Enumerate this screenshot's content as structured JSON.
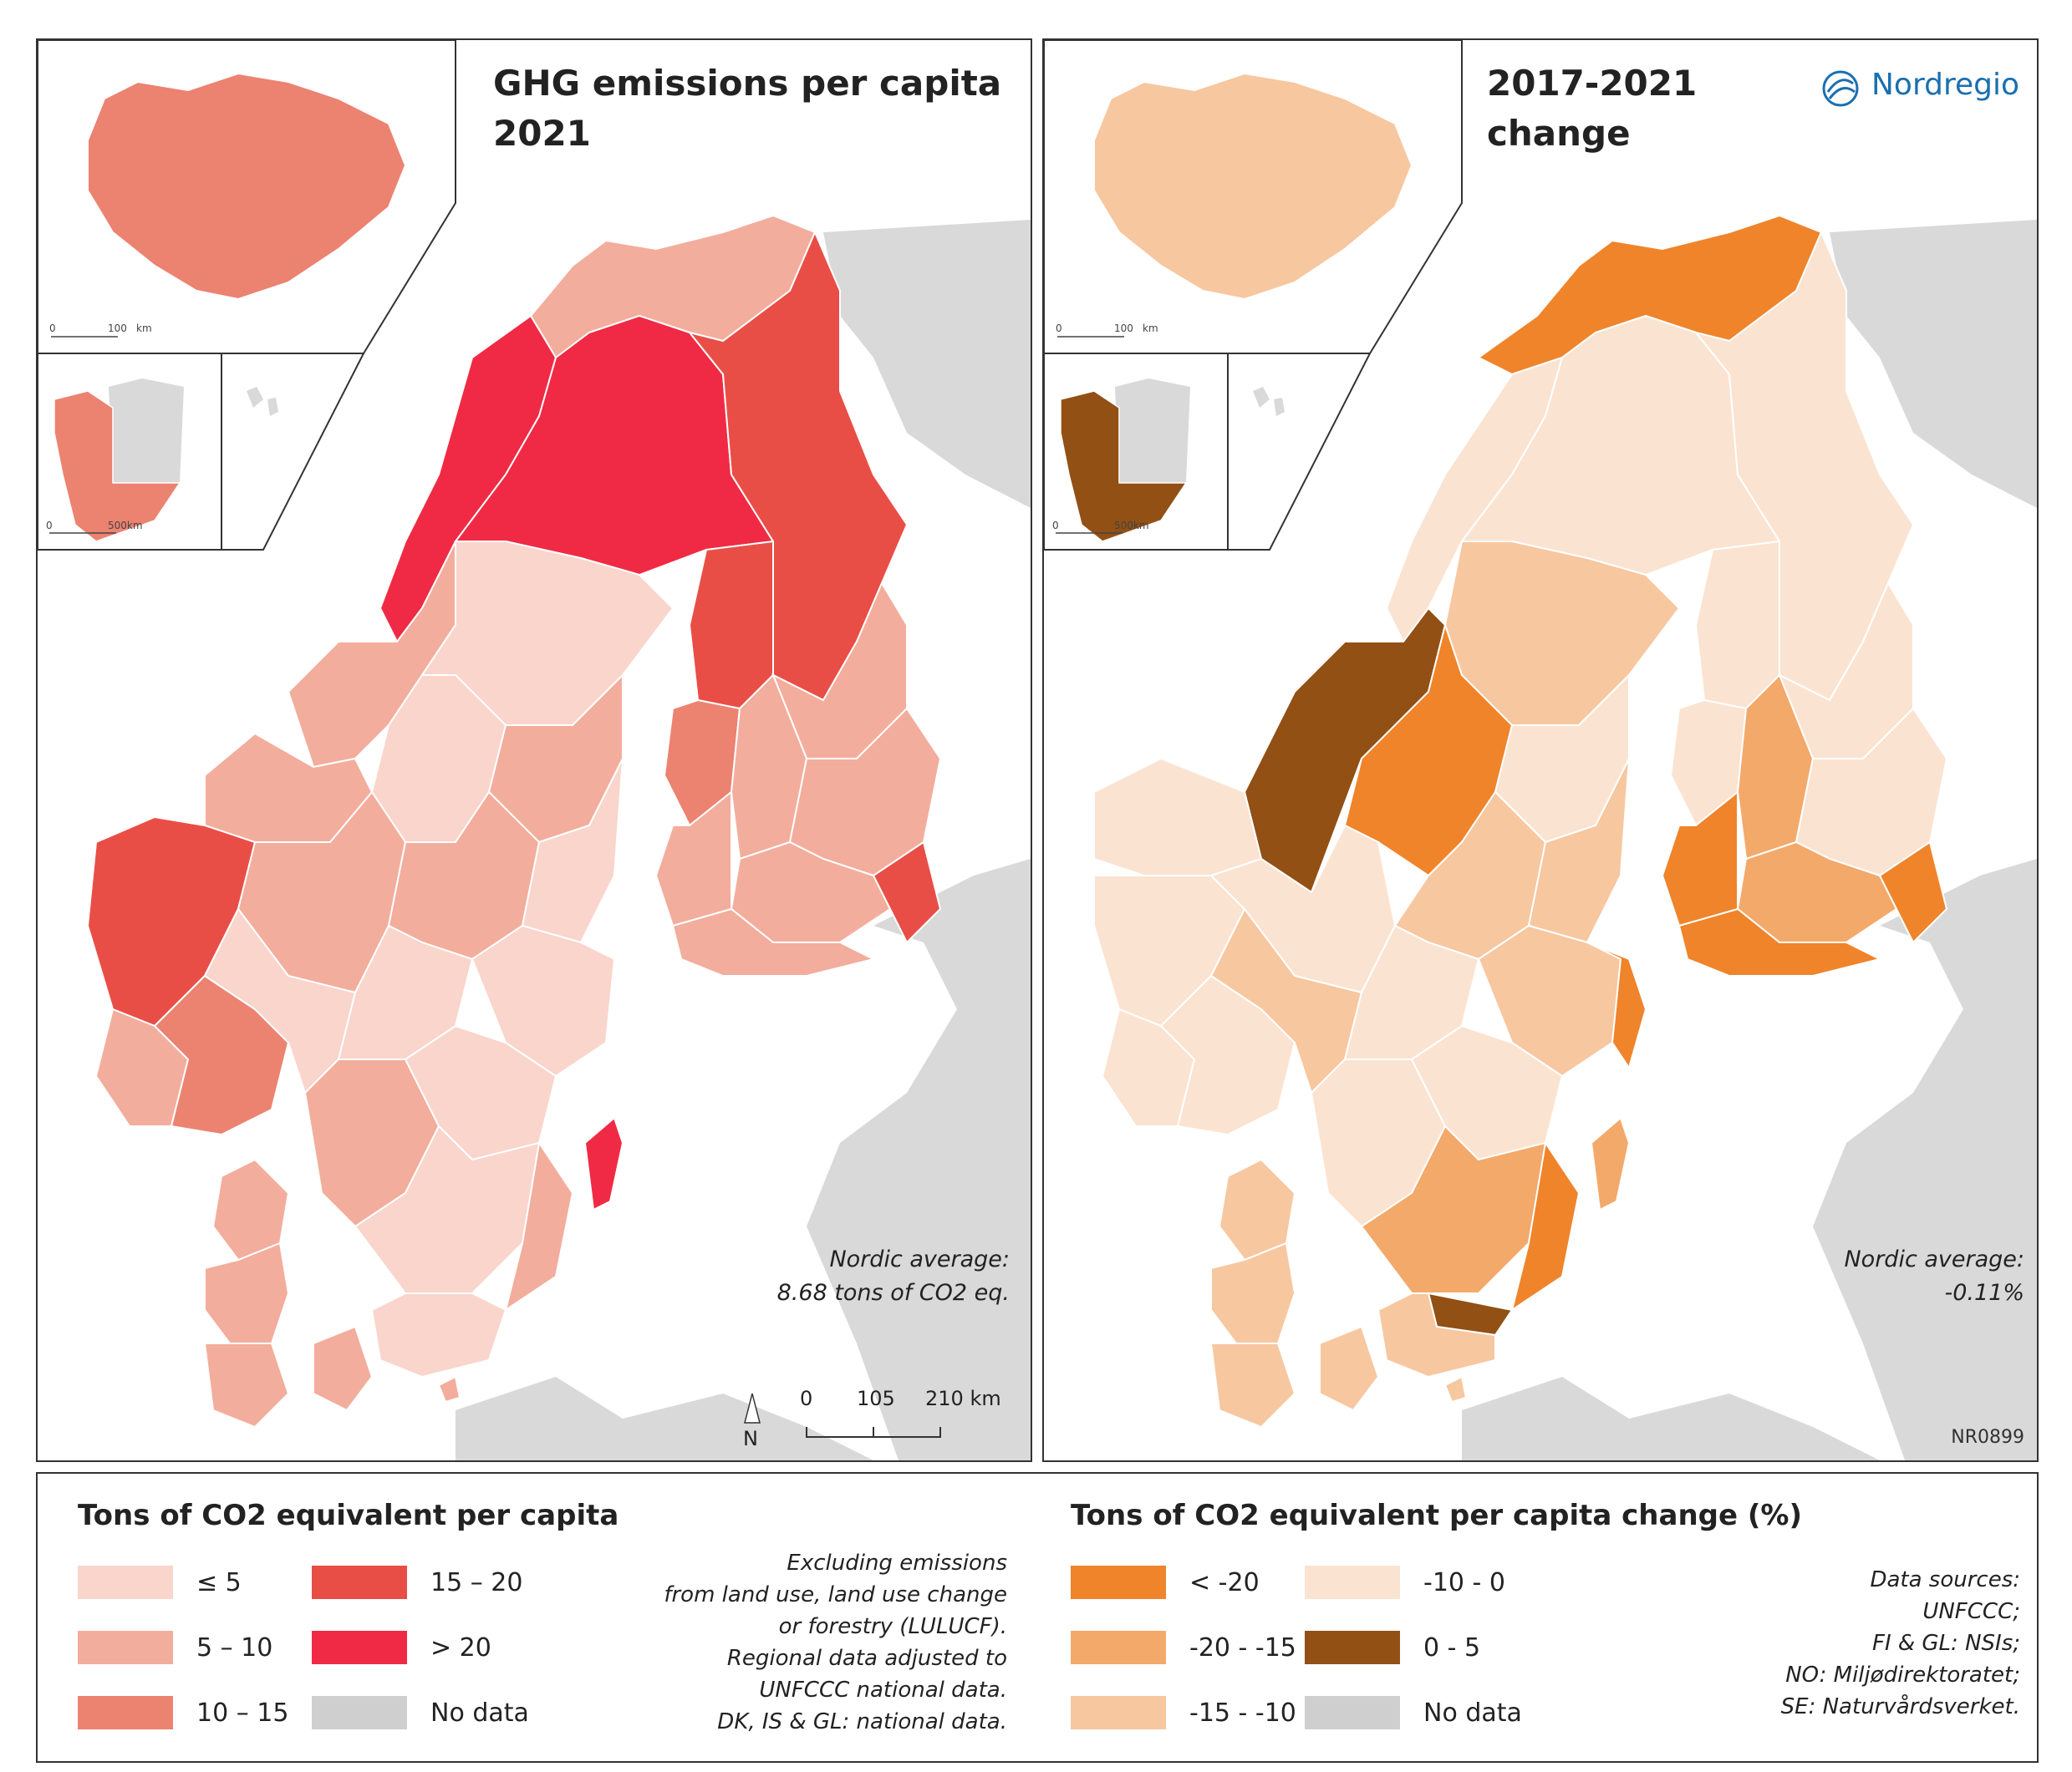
{
  "left_map": {
    "title_line1": "GHG emissions per capita",
    "title_line2": "2021",
    "avg_line1": "Nordic average:",
    "avg_line2": "8.68 tons of CO2 eq.",
    "north_label": "N",
    "scale_labels": [
      "0",
      "105",
      "210 km"
    ],
    "iceland_scale": [
      "0",
      "100",
      "km"
    ],
    "greenland_scale": [
      "0",
      "500km"
    ]
  },
  "right_map": {
    "title_line1": "2017-2021",
    "title_line2": "change",
    "brand": "Nordregio",
    "avg_line1": "Nordic average:",
    "avg_line2": "-0.11%",
    "map_code": "NR0899",
    "iceland_scale": [
      "0",
      "100",
      "km"
    ],
    "greenland_scale": [
      "0",
      "500km"
    ]
  },
  "legend_left": {
    "title": "Tons of CO2 equivalent per capita",
    "items": [
      {
        "label": "≤ 5",
        "color": "#f9d5cc"
      },
      {
        "label": "5 – 10",
        "color": "#f3ad9c"
      },
      {
        "label": "10 – 15",
        "color": "#ec8270"
      },
      {
        "label": "15 – 20",
        "color": "#e94e46"
      },
      {
        "label": "> 20",
        "color": "#f02a44"
      },
      {
        "label": "No data",
        "color": "#cfcfcf"
      }
    ],
    "note": [
      "Excluding emissions",
      "from land use, land use change",
      "or forestry (LULUCF).",
      "Regional data adjusted to",
      "UNFCCC national data.",
      "DK, IS & GL: national data."
    ]
  },
  "legend_right": {
    "title": "Tons of CO2 equivalent per capita change (%)",
    "items": [
      {
        "label": "< -20",
        "color": "#ef842b"
      },
      {
        "label": "-20 - -15",
        "color": "#f3a96a"
      },
      {
        "label": "-15 - -10",
        "color": "#f7c7a0"
      },
      {
        "label": "-10 - 0",
        "color": "#fbe3d1"
      },
      {
        "label": "0 - 5",
        "color": "#925015"
      },
      {
        "label": "No data",
        "color": "#cfcfcf"
      }
    ],
    "sources": [
      "Data sources:",
      "UNFCCC;",
      "FI & GL: NSIs;",
      "NO: Miljødirektoratet;",
      "SE: Naturvårdsverket."
    ]
  },
  "colors": {
    "land_no_data": "#d9d9d9",
    "sea": "#ffffff",
    "border": "#ffffff"
  }
}
